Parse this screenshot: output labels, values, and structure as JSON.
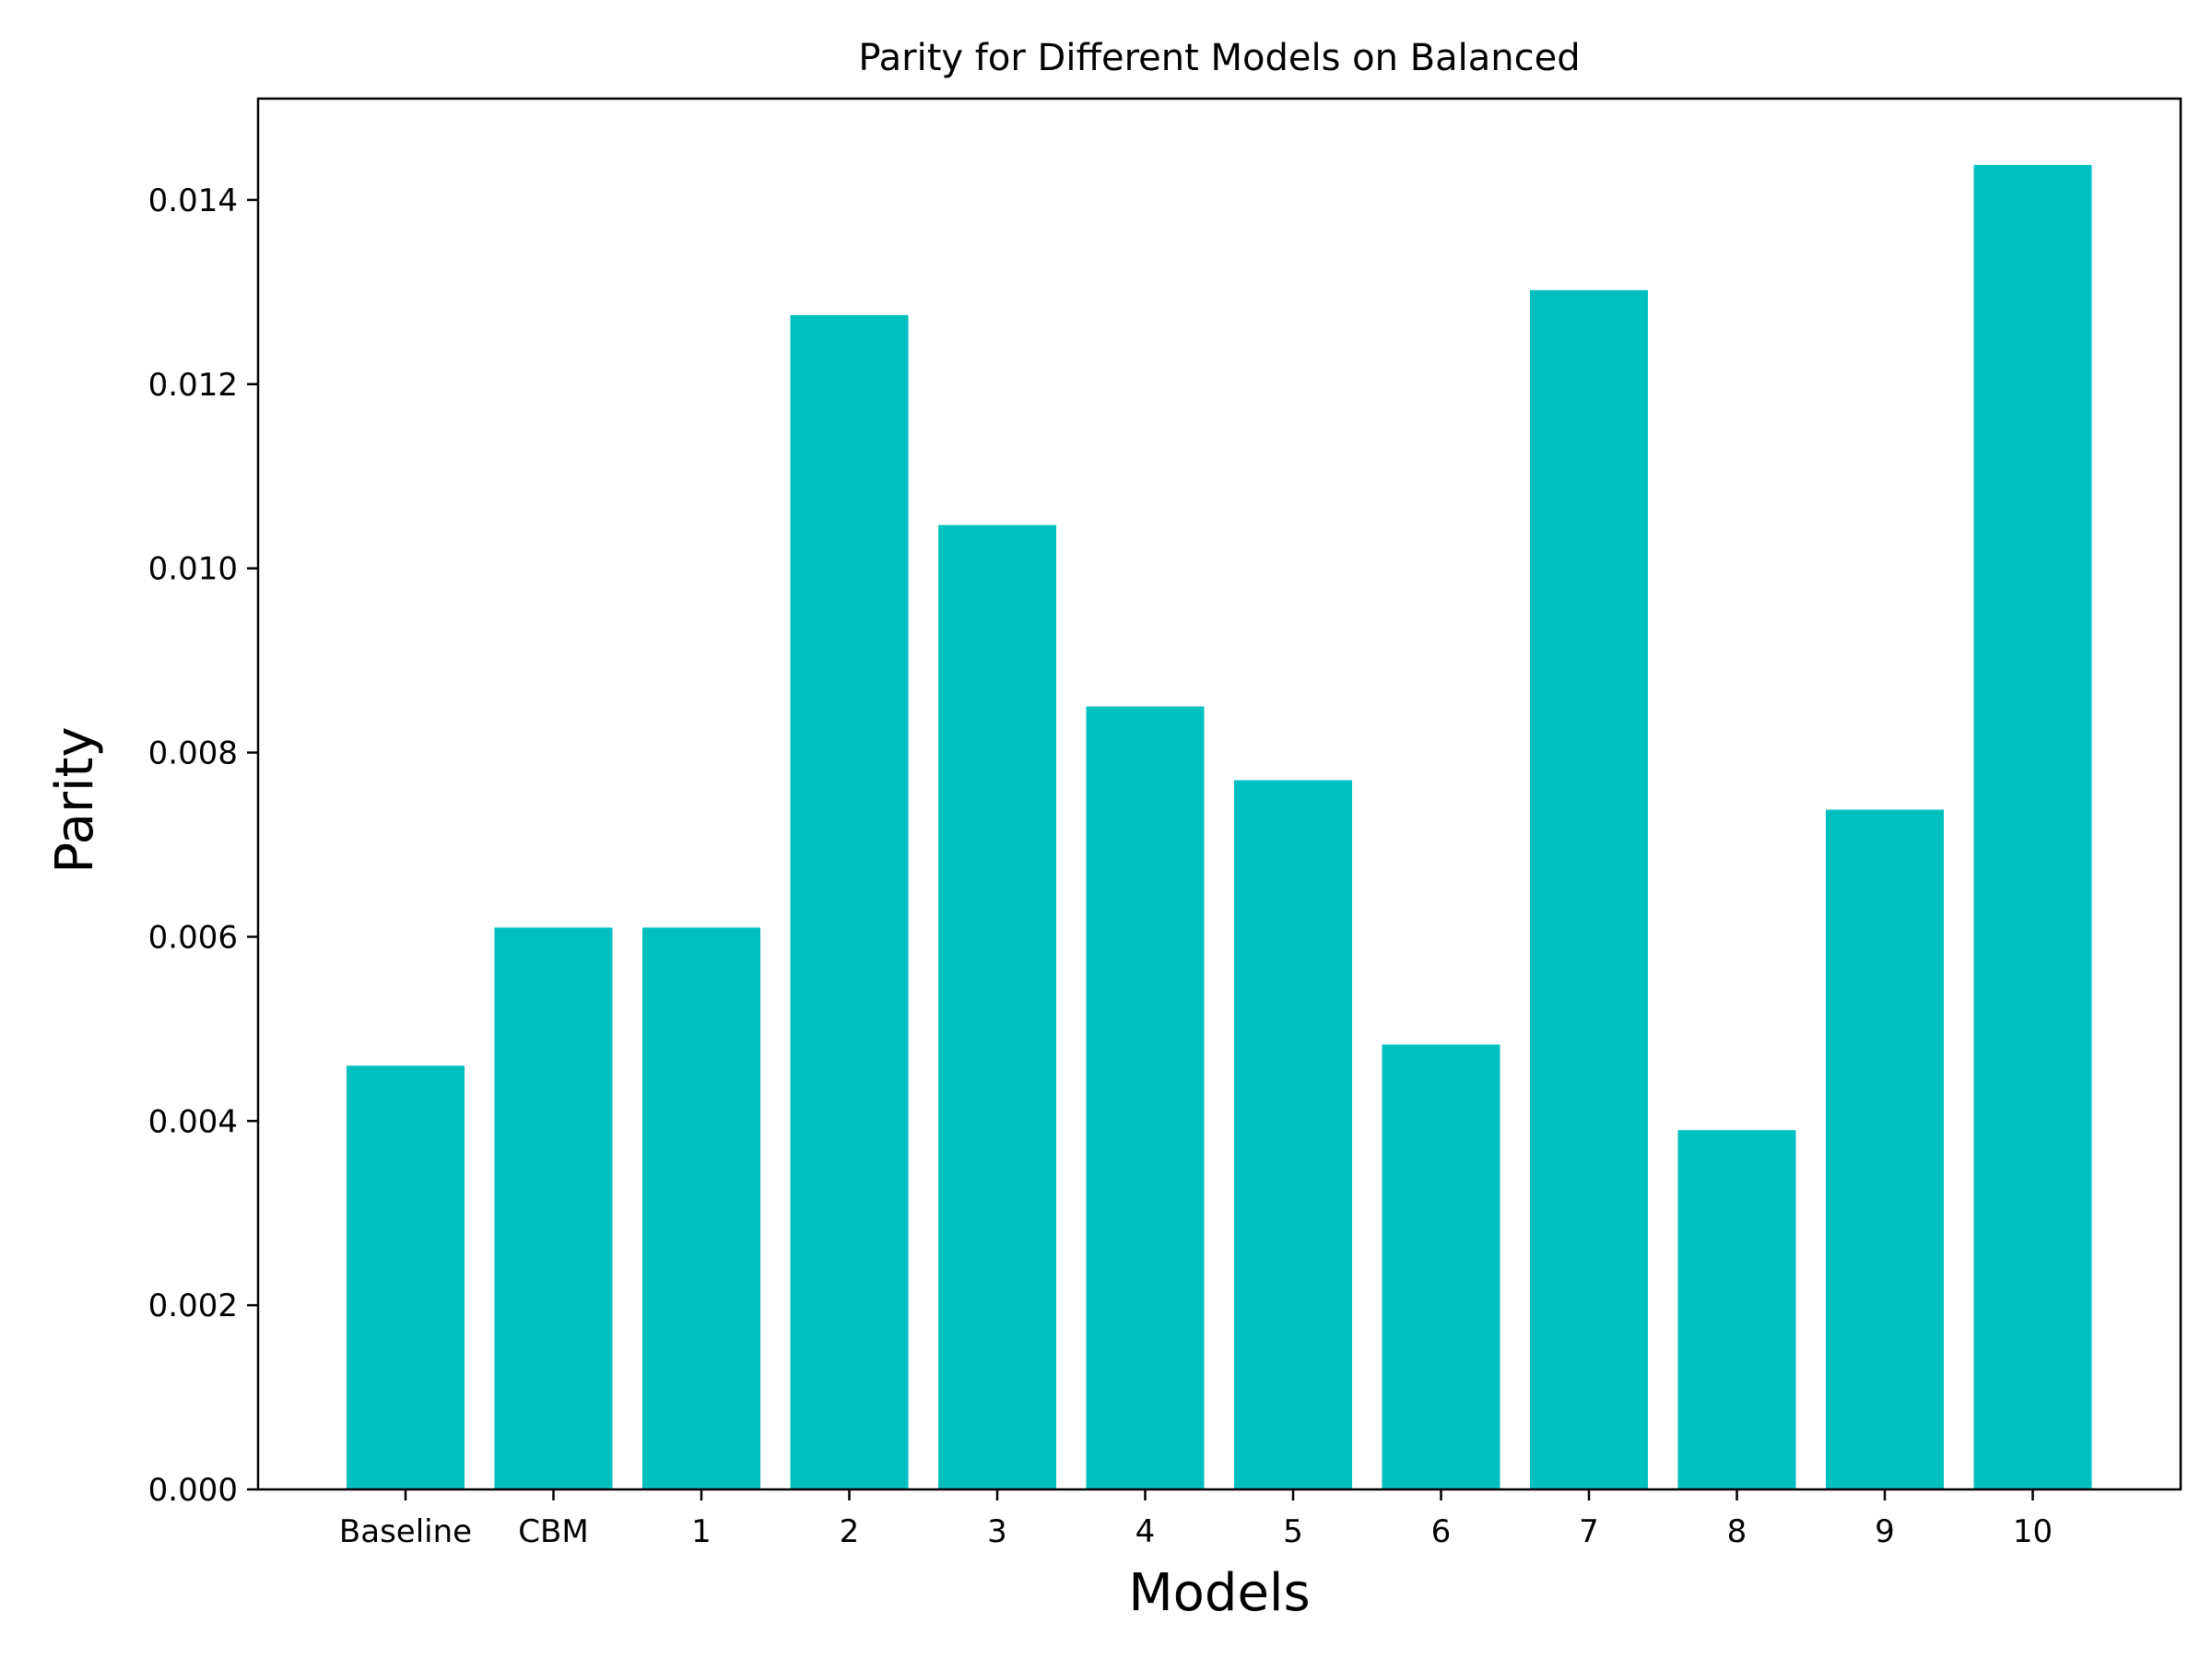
{
  "chart_data": {
    "type": "bar",
    "title": "Parity for Different Models on Balanced",
    "xlabel": "Models",
    "ylabel": "Parity",
    "categories": [
      "Baseline",
      "CBM",
      "1",
      "2",
      "3",
      "4",
      "5",
      "6",
      "7",
      "8",
      "9",
      "10"
    ],
    "values": [
      0.0046,
      0.0061,
      0.0061,
      0.01275,
      0.01047,
      0.0085,
      0.0077,
      0.00483,
      0.01302,
      0.0039,
      0.00738,
      0.01438
    ],
    "ylim": [
      0,
      0.0151
    ],
    "yticks": [
      "0.000",
      "0.002",
      "0.004",
      "0.006",
      "0.008",
      "0.010",
      "0.012",
      "0.014"
    ],
    "ytick_values": [
      0,
      0.002,
      0.004,
      0.006,
      0.008,
      0.01,
      0.012,
      0.014
    ],
    "bar_color": "#00BFBF",
    "grid": false,
    "legend": false
  }
}
